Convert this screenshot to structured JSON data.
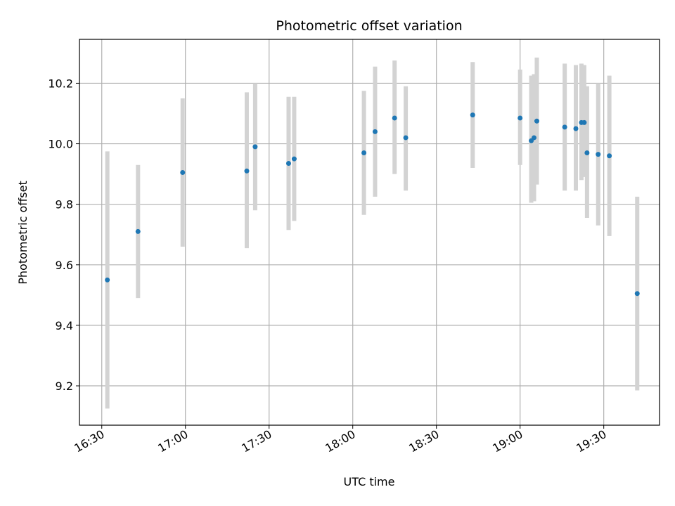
{
  "chart_data": {
    "type": "scatter",
    "title": "Photometric offset variation",
    "xlabel": "UTC time",
    "ylabel": "Photometric offset",
    "x_type": "time",
    "xlim": [
      "16:22",
      "19:50"
    ],
    "ylim": [
      9.07,
      10.345
    ],
    "x_ticks": [
      "16:30",
      "17:00",
      "17:30",
      "18:00",
      "18:30",
      "19:00",
      "19:30"
    ],
    "y_ticks": [
      9.2,
      9.4,
      9.6,
      9.8,
      10.0,
      10.2
    ],
    "grid": true,
    "marker_color": "#1f77b4",
    "errorbar_color": "#d3d3d3",
    "points": [
      {
        "x": "16:32",
        "y": 9.55,
        "low": 9.125,
        "high": 9.975
      },
      {
        "x": "16:43",
        "y": 9.71,
        "low": 9.49,
        "high": 9.93
      },
      {
        "x": "16:59",
        "y": 9.905,
        "low": 9.66,
        "high": 10.15
      },
      {
        "x": "17:22",
        "y": 9.91,
        "low": 9.655,
        "high": 10.17
      },
      {
        "x": "17:25",
        "y": 9.99,
        "low": 9.78,
        "high": 10.2
      },
      {
        "x": "17:37",
        "y": 9.935,
        "low": 9.715,
        "high": 10.155
      },
      {
        "x": "17:39",
        "y": 9.95,
        "low": 9.745,
        "high": 10.155
      },
      {
        "x": "18:04",
        "y": 9.97,
        "low": 9.765,
        "high": 10.175
      },
      {
        "x": "18:08",
        "y": 10.04,
        "low": 9.825,
        "high": 10.255
      },
      {
        "x": "18:15",
        "y": 10.085,
        "low": 9.9,
        "high": 10.275
      },
      {
        "x": "18:19",
        "y": 10.02,
        "low": 9.845,
        "high": 10.19
      },
      {
        "x": "18:43",
        "y": 10.095,
        "low": 9.92,
        "high": 10.27
      },
      {
        "x": "19:00",
        "y": 10.085,
        "low": 9.93,
        "high": 10.245
      },
      {
        "x": "19:04",
        "y": 10.01,
        "low": 9.805,
        "high": 10.225
      },
      {
        "x": "19:05",
        "y": 10.02,
        "low": 9.81,
        "high": 10.23
      },
      {
        "x": "19:06",
        "y": 10.075,
        "low": 9.865,
        "high": 10.285
      },
      {
        "x": "19:16",
        "y": 10.055,
        "low": 9.845,
        "high": 10.265
      },
      {
        "x": "19:20",
        "y": 10.05,
        "low": 9.845,
        "high": 10.26
      },
      {
        "x": "19:22",
        "y": 10.07,
        "low": 9.88,
        "high": 10.265
      },
      {
        "x": "19:23",
        "y": 10.07,
        "low": 9.89,
        "high": 10.26
      },
      {
        "x": "19:24",
        "y": 9.97,
        "low": 9.755,
        "high": 10.19
      },
      {
        "x": "19:28",
        "y": 9.965,
        "low": 9.73,
        "high": 10.2
      },
      {
        "x": "19:32",
        "y": 9.96,
        "low": 9.695,
        "high": 10.225
      },
      {
        "x": "19:42",
        "y": 9.505,
        "low": 9.185,
        "high": 9.825
      }
    ]
  }
}
